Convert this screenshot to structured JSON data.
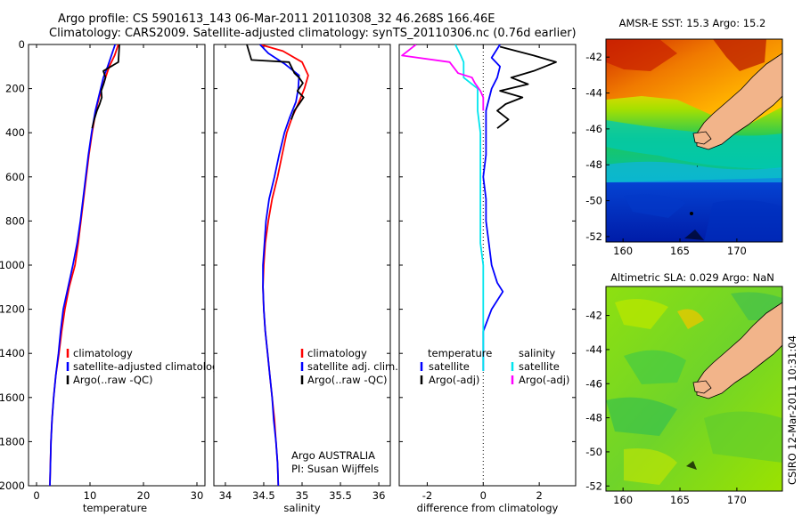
{
  "figure": {
    "title_line1": "Argo profile: CS 5901613_143 06-Mar-2011 20110308_32 46.268S 166.46E",
    "title_line2": "Climatology: CARS2009. Satellite-adjusted climatology: synTS_20110306.nc (0.76d earlier)",
    "footer_vertical": "CSIRO 12-Mar-2011 10:31:04"
  },
  "colors": {
    "climatology": "#ff0000",
    "satellite": "#0000ff",
    "argo": "#000000",
    "salinity_satellite": "#00e5ee",
    "salinity_argo": "#ff00ff",
    "land": "#f2b48a"
  },
  "chart_data": [
    {
      "id": "temperature",
      "type": "line",
      "xlabel": "temperature",
      "xlim": [
        -1.5,
        31.5
      ],
      "ylim": [
        0,
        2000
      ],
      "xticks": [
        0,
        10,
        20,
        30
      ],
      "yticks": [
        0,
        200,
        400,
        600,
        800,
        1000,
        1200,
        1400,
        1600,
        1800,
        2000
      ],
      "y_reversed": true,
      "legend": [
        "climatology",
        "satellite-adjusted climatology",
        "Argo(..raw -QC)"
      ],
      "series": [
        {
          "name": "climatology",
          "color": "#ff0000",
          "points": [
            [
              15.3,
              0
            ],
            [
              14.6,
              50
            ],
            [
              13.6,
              100
            ],
            [
              12.9,
              150
            ],
            [
              12.2,
              200
            ],
            [
              11.6,
              250
            ],
            [
              11.1,
              300
            ],
            [
              10.4,
              400
            ],
            [
              9.8,
              500
            ],
            [
              9.3,
              600
            ],
            [
              8.8,
              700
            ],
            [
              8.3,
              800
            ],
            [
              7.8,
              900
            ],
            [
              7.2,
              1000
            ],
            [
              6.1,
              1100
            ],
            [
              5.3,
              1200
            ],
            [
              4.7,
              1300
            ],
            [
              4.2,
              1400
            ],
            [
              3.6,
              1500
            ],
            [
              3.2,
              1600
            ],
            [
              2.9,
              1700
            ],
            [
              2.7,
              1800
            ],
            [
              2.6,
              1900
            ],
            [
              2.5,
              2000
            ]
          ]
        },
        {
          "name": "satellite-adjusted climatology",
          "color": "#0000ff",
          "points": [
            [
              14.7,
              0
            ],
            [
              14.0,
              50
            ],
            [
              13.3,
              100
            ],
            [
              12.5,
              150
            ],
            [
              12.0,
              200
            ],
            [
              11.5,
              250
            ],
            [
              11.0,
              300
            ],
            [
              10.3,
              400
            ],
            [
              9.7,
              500
            ],
            [
              9.2,
              600
            ],
            [
              8.7,
              700
            ],
            [
              8.2,
              800
            ],
            [
              7.6,
              900
            ],
            [
              6.8,
              1000
            ],
            [
              5.9,
              1100
            ],
            [
              5.0,
              1200
            ],
            [
              4.5,
              1300
            ],
            [
              4.1,
              1400
            ],
            [
              3.6,
              1500
            ],
            [
              3.2,
              1600
            ],
            [
              2.9,
              1700
            ],
            [
              2.7,
              1800
            ],
            [
              2.6,
              1900
            ],
            [
              2.5,
              2000
            ]
          ]
        },
        {
          "name": "Argo(..raw -QC)",
          "color": "#000000",
          "points": [
            [
              15.5,
              0
            ],
            [
              15.4,
              40
            ],
            [
              15.3,
              80
            ],
            [
              12.5,
              120
            ],
            [
              12.9,
              150
            ],
            [
              12.6,
              175
            ],
            [
              12.1,
              210
            ],
            [
              12.2,
              240
            ],
            [
              11.8,
              270
            ],
            [
              11.3,
              300
            ],
            [
              10.8,
              340
            ],
            [
              10.4,
              380
            ]
          ]
        }
      ]
    },
    {
      "id": "salinity",
      "type": "line",
      "xlabel": "salinity",
      "xlim": [
        33.85,
        36.15
      ],
      "ylim": [
        0,
        2000
      ],
      "xticks": [
        34,
        34.5,
        35,
        35.5,
        36
      ],
      "y_reversed": true,
      "legend": [
        "climatology",
        "satellite adj. clim.",
        "Argo(..raw -QC)"
      ],
      "annotation": [
        "Argo AUSTRALIA",
        "PI: Susan Wijffels"
      ],
      "series": [
        {
          "name": "climatology",
          "color": "#ff0000",
          "points": [
            [
              34.45,
              0
            ],
            [
              34.75,
              30
            ],
            [
              35.0,
              80
            ],
            [
              35.08,
              140
            ],
            [
              35.03,
              200
            ],
            [
              34.96,
              260
            ],
            [
              34.87,
              330
            ],
            [
              34.8,
              400
            ],
            [
              34.74,
              500
            ],
            [
              34.68,
              600
            ],
            [
              34.61,
              700
            ],
            [
              34.56,
              800
            ],
            [
              34.52,
              900
            ],
            [
              34.5,
              1000
            ],
            [
              34.49,
              1100
            ],
            [
              34.5,
              1200
            ],
            [
              34.52,
              1300
            ],
            [
              34.55,
              1400
            ],
            [
              34.58,
              1500
            ],
            [
              34.61,
              1600
            ],
            [
              34.64,
              1700
            ],
            [
              34.66,
              1800
            ],
            [
              34.68,
              1900
            ],
            [
              34.69,
              2000
            ]
          ]
        },
        {
          "name": "satellite adj. clim.",
          "color": "#0000ff",
          "points": [
            [
              34.45,
              0
            ],
            [
              34.56,
              40
            ],
            [
              34.78,
              90
            ],
            [
              34.96,
              140
            ],
            [
              34.95,
              200
            ],
            [
              34.92,
              260
            ],
            [
              34.84,
              330
            ],
            [
              34.77,
              400
            ],
            [
              34.7,
              500
            ],
            [
              34.64,
              600
            ],
            [
              34.57,
              700
            ],
            [
              34.53,
              800
            ],
            [
              34.51,
              900
            ],
            [
              34.49,
              1000
            ],
            [
              34.49,
              1100
            ],
            [
              34.5,
              1200
            ],
            [
              34.52,
              1300
            ],
            [
              34.55,
              1400
            ],
            [
              34.58,
              1500
            ],
            [
              34.61,
              1600
            ],
            [
              34.63,
              1700
            ],
            [
              34.66,
              1800
            ],
            [
              34.68,
              1900
            ],
            [
              34.69,
              2000
            ]
          ]
        },
        {
          "name": "Argo(..raw -QC)",
          "color": "#000000",
          "points": [
            [
              34.28,
              0
            ],
            [
              34.34,
              70
            ],
            [
              34.83,
              80
            ],
            [
              34.9,
              130
            ],
            [
              34.96,
              150
            ],
            [
              35.01,
              175
            ],
            [
              34.94,
              210
            ],
            [
              35.02,
              240
            ],
            [
              34.96,
              270
            ],
            [
              34.9,
              300
            ],
            [
              34.86,
              340
            ]
          ]
        }
      ]
    },
    {
      "id": "difference",
      "type": "line",
      "xlabel": "difference from climatology",
      "xlim": [
        -3.0,
        3.3
      ],
      "ylim": [
        0,
        2000
      ],
      "xticks": [
        -2,
        0,
        2
      ],
      "y_reversed": true,
      "legend_groups": [
        {
          "heading": "temperature",
          "items": [
            "satellite",
            "Argo(-adj)"
          ]
        },
        {
          "heading": "salinity",
          "items": [
            "satellite",
            "Argo(-adj)"
          ]
        }
      ],
      "series": [
        {
          "name": "satellite (temperature)",
          "color": "#0000ff",
          "points": [
            [
              0.6,
              0
            ],
            [
              0.3,
              60
            ],
            [
              0.6,
              100
            ],
            [
              0.5,
              150
            ],
            [
              0.3,
              200
            ],
            [
              0.1,
              300
            ],
            [
              0.1,
              400
            ],
            [
              0.1,
              500
            ],
            [
              0.0,
              600
            ],
            [
              0.1,
              700
            ],
            [
              0.1,
              800
            ],
            [
              0.2,
              900
            ],
            [
              0.3,
              1000
            ],
            [
              0.5,
              1080
            ],
            [
              0.7,
              1120
            ],
            [
              0.3,
              1200
            ],
            [
              0.0,
              1300
            ],
            [
              0.0,
              1400
            ],
            [
              0.0,
              1480
            ]
          ]
        },
        {
          "name": "Argo(-adj) (temperature)",
          "color": "#000000",
          "points": [
            [
              0.6,
              10
            ],
            [
              1.8,
              50
            ],
            [
              2.6,
              80
            ],
            [
              1.8,
              120
            ],
            [
              1.0,
              150
            ],
            [
              1.6,
              180
            ],
            [
              0.6,
              210
            ],
            [
              1.4,
              240
            ],
            [
              0.8,
              270
            ],
            [
              0.5,
              300
            ],
            [
              0.9,
              340
            ],
            [
              0.5,
              380
            ]
          ]
        },
        {
          "name": "satellite (salinity)",
          "color": "#00e5ee",
          "points": [
            [
              -1.0,
              0
            ],
            [
              -0.8,
              50
            ],
            [
              -0.7,
              80
            ],
            [
              -0.7,
              150
            ],
            [
              -0.2,
              200
            ],
            [
              -0.2,
              300
            ],
            [
              -0.1,
              400
            ],
            [
              -0.1,
              500
            ],
            [
              -0.1,
              600
            ],
            [
              -0.1,
              700
            ],
            [
              -0.1,
              800
            ],
            [
              -0.1,
              900
            ],
            [
              0.0,
              1000
            ],
            [
              0.0,
              1100
            ],
            [
              0.0,
              1200
            ],
            [
              0.0,
              1300
            ],
            [
              0.0,
              1400
            ],
            [
              0.0,
              1480
            ]
          ]
        },
        {
          "name": "Argo(-adj) (salinity)",
          "color": "#ff00ff",
          "points": [
            [
              -2.4,
              0
            ],
            [
              -2.9,
              50
            ],
            [
              -1.2,
              80
            ],
            [
              -0.9,
              130
            ],
            [
              -0.4,
              150
            ],
            [
              -0.3,
              175
            ],
            [
              -0.1,
              210
            ],
            [
              0.0,
              240
            ],
            [
              0.0,
              270
            ],
            [
              0.0,
              300
            ]
          ]
        }
      ]
    }
  ],
  "maps": [
    {
      "id": "sst",
      "title": "AMSR-E SST: 15.3 Argo: 15.2",
      "xticks": [
        160,
        165,
        170
      ],
      "yticks": [
        -42,
        -44,
        -46,
        -48,
        -50,
        -52
      ]
    },
    {
      "id": "sla",
      "title": "Altimetric SLA: 0.029 Argo: NaN",
      "xticks": [
        160,
        165,
        170
      ],
      "yticks": [
        -42,
        -44,
        -46,
        -48,
        -50,
        -52
      ]
    }
  ]
}
